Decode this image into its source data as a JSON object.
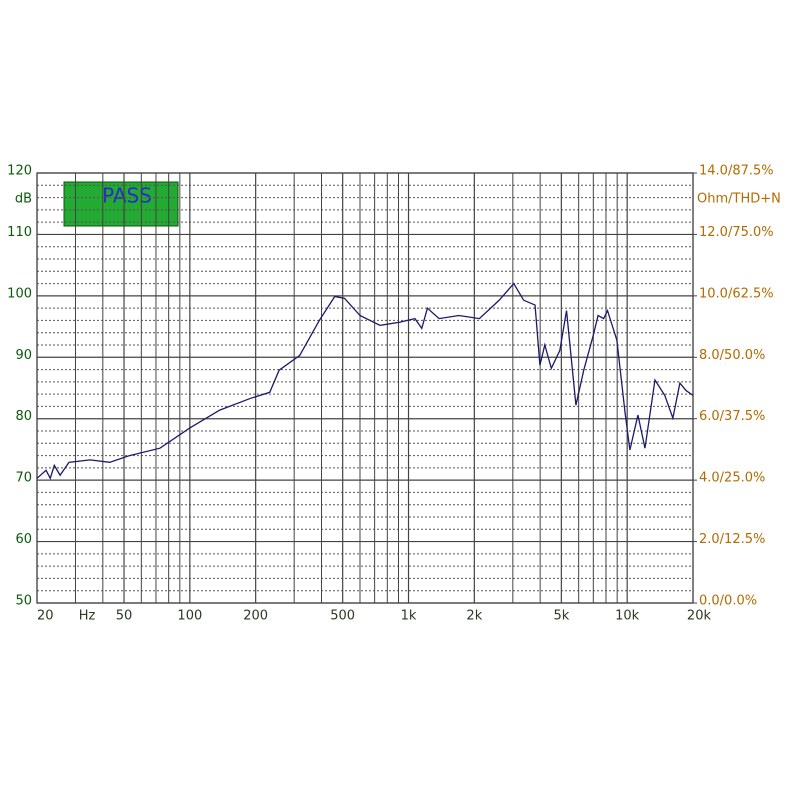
{
  "chart_data": {
    "type": "line",
    "annotation": "PASS",
    "ylabel": "dB",
    "y2label": "Ohm/THD+N",
    "xlabel": "Hz",
    "log_x": true,
    "grid": true,
    "xlim": [
      20,
      20000
    ],
    "xticks": [
      20,
      50,
      100,
      200,
      500,
      {
        "value": 1000,
        "label": "1k"
      },
      {
        "value": 2000,
        "label": "2k"
      },
      {
        "value": 5000,
        "label": "5k"
      },
      {
        "value": 10000,
        "label": "10k"
      },
      {
        "value": 20000,
        "label": "20k"
      }
    ],
    "x_minor_grid": [
      30,
      40,
      60,
      70,
      80,
      90,
      300,
      400,
      600,
      700,
      800,
      900,
      3000,
      4000,
      6000,
      7000,
      8000,
      9000
    ],
    "ylim": [
      50,
      120
    ],
    "yticks": [
      50,
      60,
      70,
      80,
      90,
      100,
      110,
      120
    ],
    "y_minor_grid": [
      52,
      54,
      56,
      58,
      62,
      64,
      66,
      68,
      72,
      74,
      76,
      78,
      82,
      84,
      86,
      88,
      92,
      94,
      96,
      98,
      102,
      104,
      106,
      108,
      112,
      114,
      116,
      118
    ],
    "y2lim": [
      0,
      14
    ],
    "y2ticks": [
      {
        "value": 0,
        "label": "0.0/0.0%"
      },
      {
        "value": 2,
        "label": "2.0/12.5%"
      },
      {
        "value": 4,
        "label": "4.0/25.0%"
      },
      {
        "value": 6,
        "label": "6.0/37.5%"
      },
      {
        "value": 8,
        "label": "8.0/50.0%"
      },
      {
        "value": 10,
        "label": "10.0/62.5%"
      },
      {
        "value": 12,
        "label": "12.0/75.0%"
      },
      {
        "value": 14,
        "label": "14.0/87.5%"
      }
    ],
    "x": [
      20,
      22,
      23,
      24,
      25.5,
      28,
      35,
      43,
      53,
      73,
      100,
      137,
      189,
      232,
      256,
      318,
      391,
      460,
      510,
      600,
      740,
      910,
      1070,
      1150,
      1220,
      1380,
      1700,
      2110,
      2600,
      3030,
      3360,
      3790,
      3990,
      4200,
      4500,
      4920,
      5280,
      5830,
      6330,
      7000,
      7360,
      7810,
      8130,
      8970,
      9770,
      10290,
      11200,
      12060,
      13400,
      14860,
      16180,
      17420,
      18570,
      20000
    ],
    "series": [
      {
        "color": "#1a1a6e",
        "values": [
          70.3,
          71.6,
          70.3,
          72.4,
          70.8,
          72.9,
          73.3,
          72.9,
          74,
          75.2,
          78.5,
          81.4,
          83.3,
          84.3,
          87.9,
          90.3,
          96,
          99.9,
          99.6,
          96.8,
          95.2,
          95.7,
          96.3,
          94.7,
          98,
          96.3,
          96.8,
          96.3,
          99.3,
          102,
          99.3,
          98.5,
          88.7,
          92,
          88.2,
          91.1,
          97.6,
          82.2,
          87.9,
          93.6,
          96.8,
          96.3,
          97.6,
          92.8,
          81.1,
          74.9,
          80.6,
          75.2,
          86.3,
          83.8,
          80.1,
          85.8,
          84.6,
          83.8
        ]
      }
    ]
  }
}
